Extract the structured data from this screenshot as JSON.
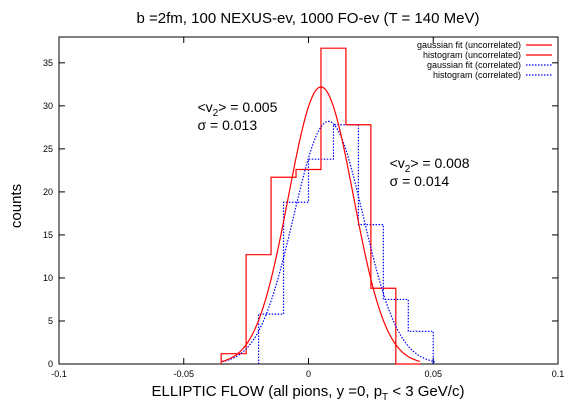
{
  "chart_data": {
    "type": "line",
    "title": "b =2fm, 100 NEXUS-ev, 1000 FO-ev (T = 140 MeV)",
    "xlabel": {
      "main": "ELLIPTIC FLOW  (all pions, y =0, p",
      "sub": "T",
      "tail": " < 3 GeV/c)"
    },
    "ylabel": "counts",
    "xlim": [
      -0.1,
      0.1
    ],
    "ylim": [
      0,
      38
    ],
    "x_ticks": [
      -0.1,
      -0.05,
      0,
      0.05,
      0.1
    ],
    "x_tick_labels": [
      "-0.1",
      "-0.05",
      "0",
      "0.05",
      "0.1"
    ],
    "y_ticks": [
      0,
      5,
      10,
      15,
      20,
      25,
      30,
      35
    ],
    "y_tick_labels": [
      "0",
      "5",
      "10",
      "15",
      "20",
      "25",
      "30",
      "35"
    ],
    "legend_position": "top-right",
    "series": [
      {
        "name": "gaussian fit (uncorrelated)",
        "kind": "gaussian",
        "color": "#ff0000",
        "dash": "solid",
        "mean": 0.005,
        "sigma": 0.013,
        "amplitude": 32.2
      },
      {
        "name": "histogram (uncorrelated)",
        "kind": "histogram",
        "color": "#ff0000",
        "dash": "solid",
        "bin_edges": [
          -0.035,
          -0.025,
          -0.015,
          -0.005,
          0.005,
          0.015,
          0.025,
          0.035,
          0.045
        ],
        "counts": [
          1.2,
          12.7,
          21.7,
          22.6,
          36.7,
          27.8,
          8.8,
          0
        ]
      },
      {
        "name": "gaussian fit (correlated)",
        "kind": "gaussian",
        "color": "#0000ff",
        "dash": "dotted",
        "mean": 0.008,
        "sigma": 0.014,
        "amplitude": 28.2
      },
      {
        "name": "histogram (correlated)",
        "kind": "histogram",
        "color": "#0000ff",
        "dash": "dotted",
        "bin_edges": [
          -0.02,
          -0.01,
          0.0,
          0.01,
          0.02,
          0.03,
          0.04,
          0.05
        ],
        "counts": [
          5.8,
          18.8,
          23.8,
          27.8,
          16.2,
          7.5,
          3.8
        ]
      }
    ],
    "annotations": [
      {
        "data_x": -0.0445,
        "data_y": 29.3,
        "line1": {
          "pre": "<v",
          "sub": "2",
          "post": "> = 0.005"
        },
        "line2": "σ = 0.013"
      },
      {
        "data_x": 0.0325,
        "data_y": 22.8,
        "line1": {
          "pre": "<v",
          "sub": "2",
          "post": "> = 0.008"
        },
        "line2": "σ = 0.014"
      }
    ]
  }
}
